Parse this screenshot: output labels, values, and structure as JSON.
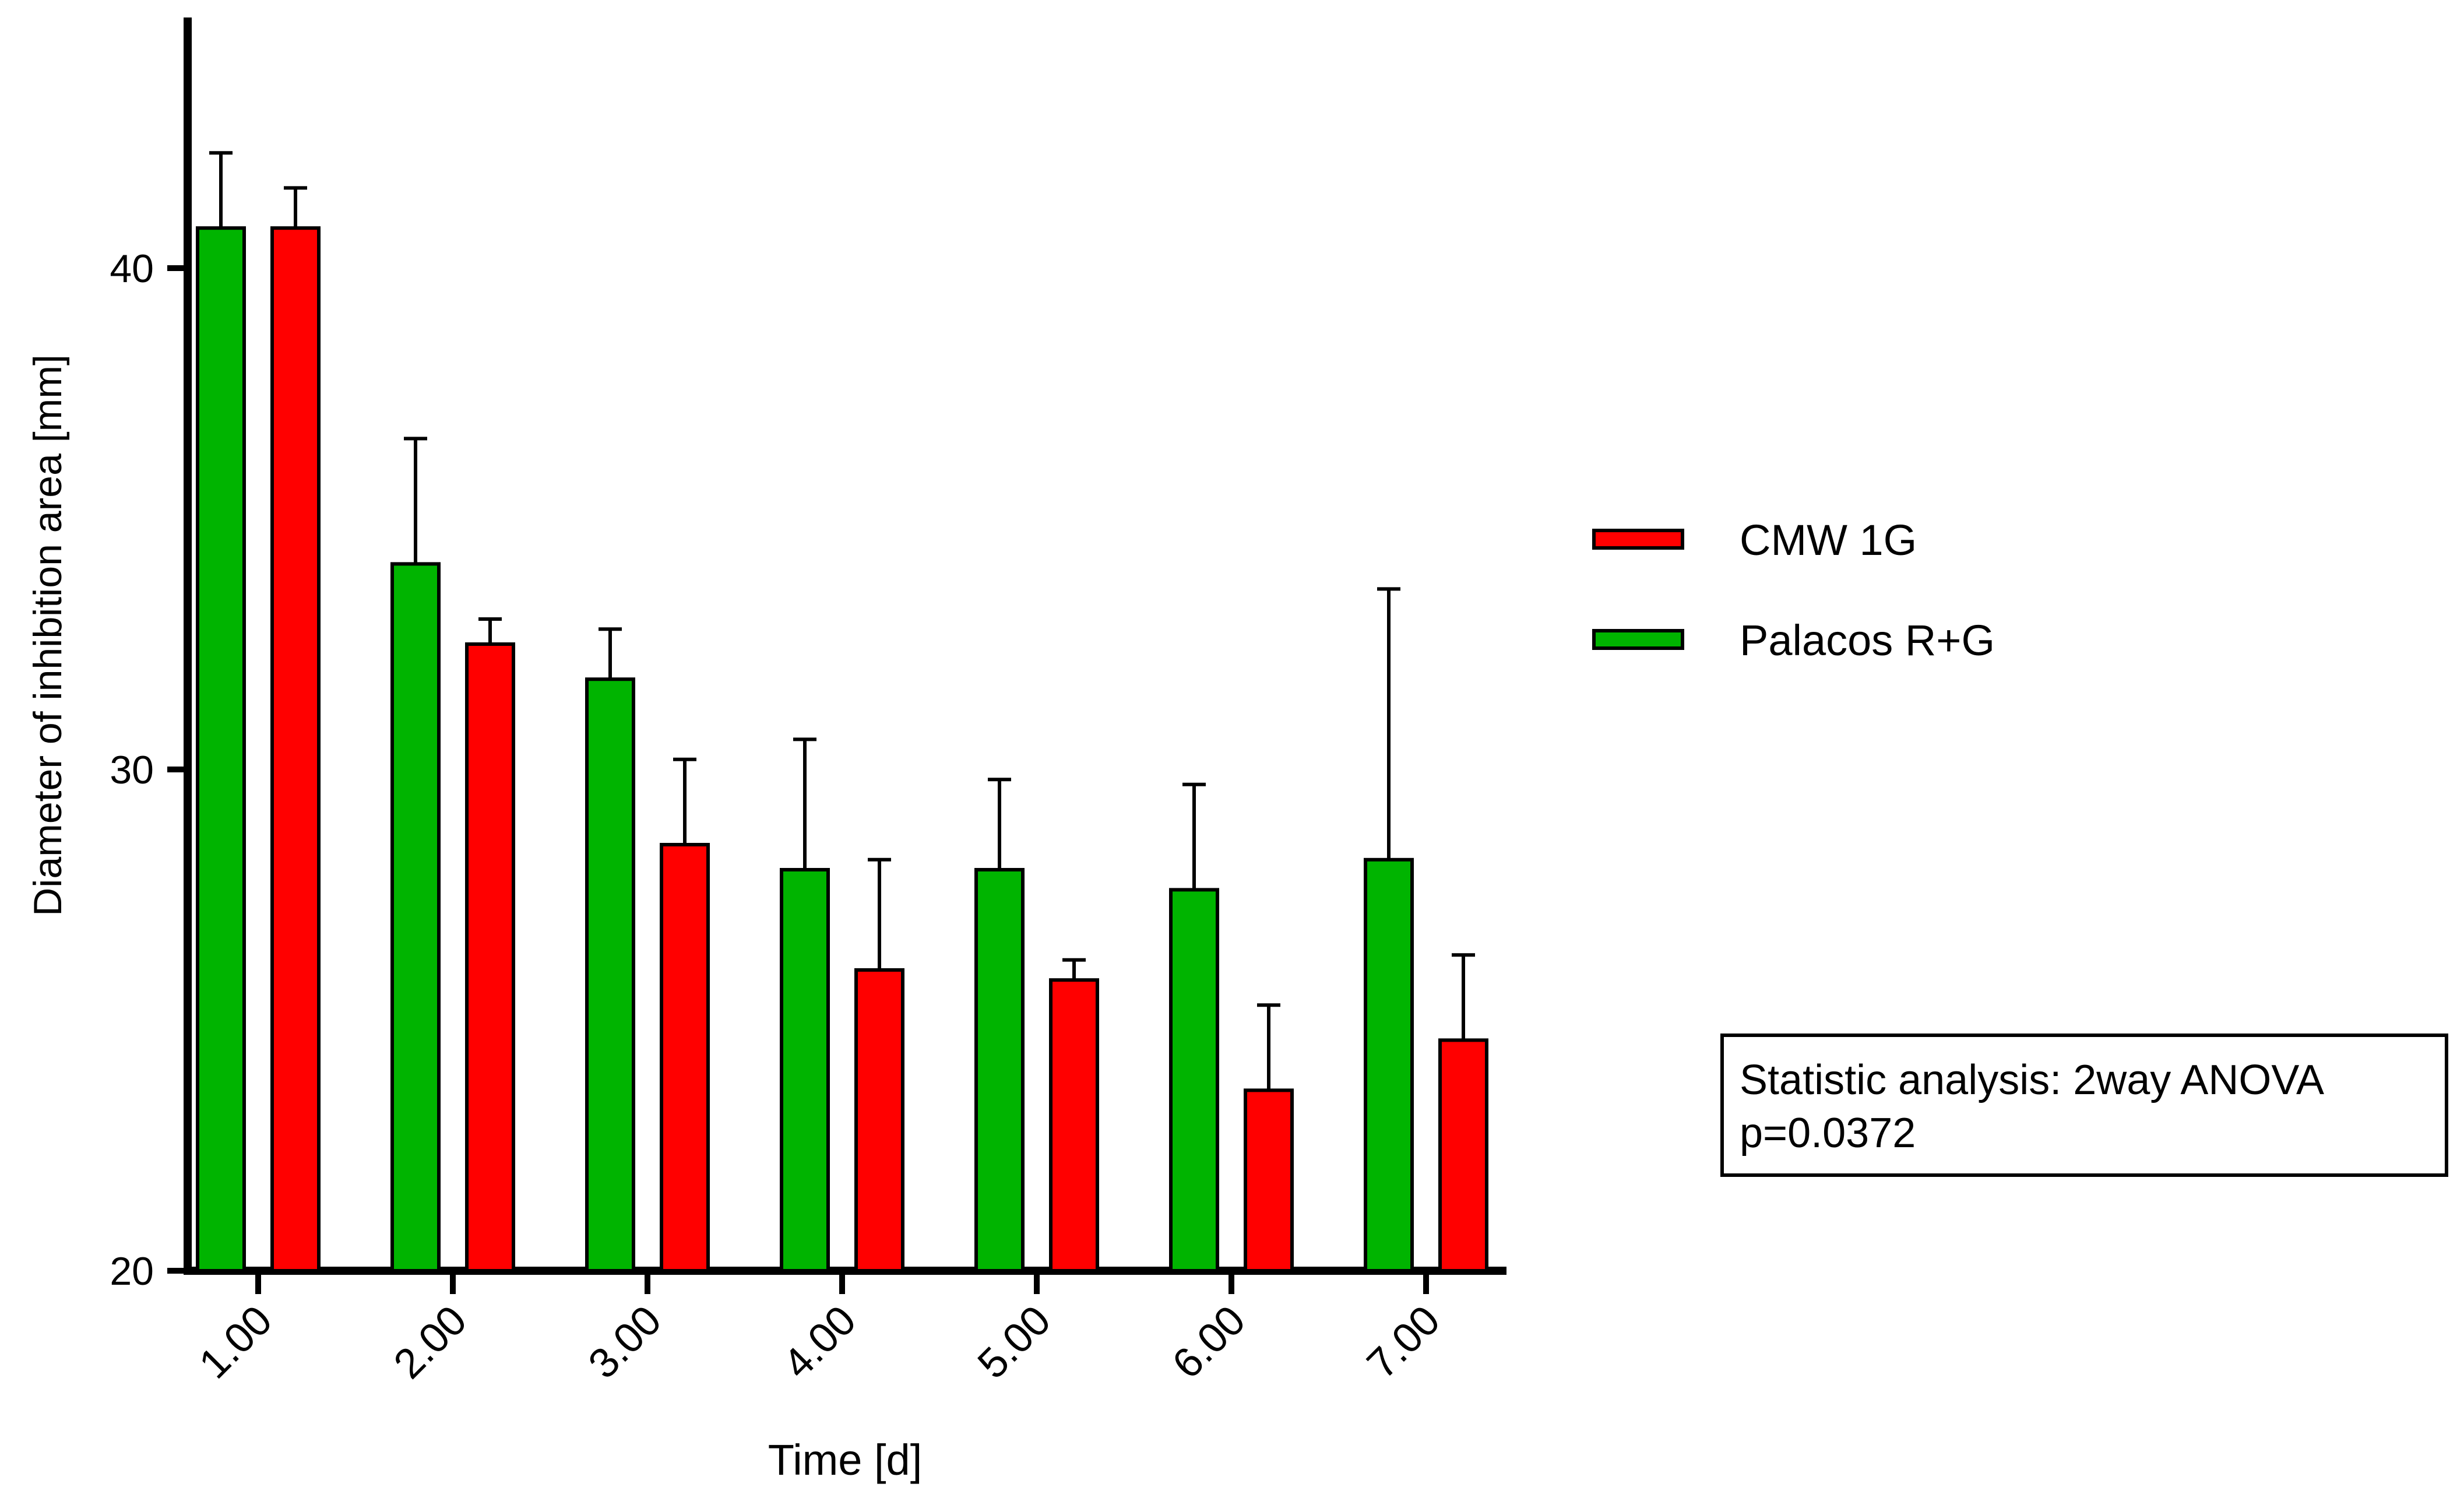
{
  "chart_data": {
    "type": "bar",
    "title": "",
    "xlabel": "Time [d]",
    "ylabel": "Diameter of inhibition area [mm]",
    "ylim": [
      20,
      45
    ],
    "yticks": [
      20,
      30,
      40
    ],
    "ytick_labels": [
      "20",
      "30",
      "40"
    ],
    "grid": false,
    "categories": [
      "1.00",
      "2.00",
      "3.00",
      "4.00",
      "5.00",
      "6.00",
      "7.00"
    ],
    "series": [
      {
        "name": "Palacos R+G",
        "color": "#00b400",
        "values": [
          40.8,
          34.1,
          31.8,
          28.0,
          28.0,
          27.6,
          28.2
        ],
        "error_upper": [
          42.3,
          36.6,
          32.8,
          30.6,
          29.8,
          29.7,
          33.6
        ]
      },
      {
        "name": "CMW 1G",
        "color": "#ff0000",
        "values": [
          40.8,
          32.5,
          28.5,
          26.0,
          25.8,
          23.6,
          24.6
        ],
        "error_upper": [
          41.6,
          33.0,
          30.2,
          28.2,
          26.2,
          25.3,
          26.3
        ]
      }
    ],
    "legend": {
      "placement": "right",
      "entries": [
        {
          "label": "CMW 1G",
          "color": "#ff0000"
        },
        {
          "label": "Palacos R+G",
          "color": "#00b400"
        }
      ]
    },
    "annotation": {
      "lines": [
        "Statistic analysis: 2way ANOVA",
        "p=0.0372"
      ]
    }
  }
}
